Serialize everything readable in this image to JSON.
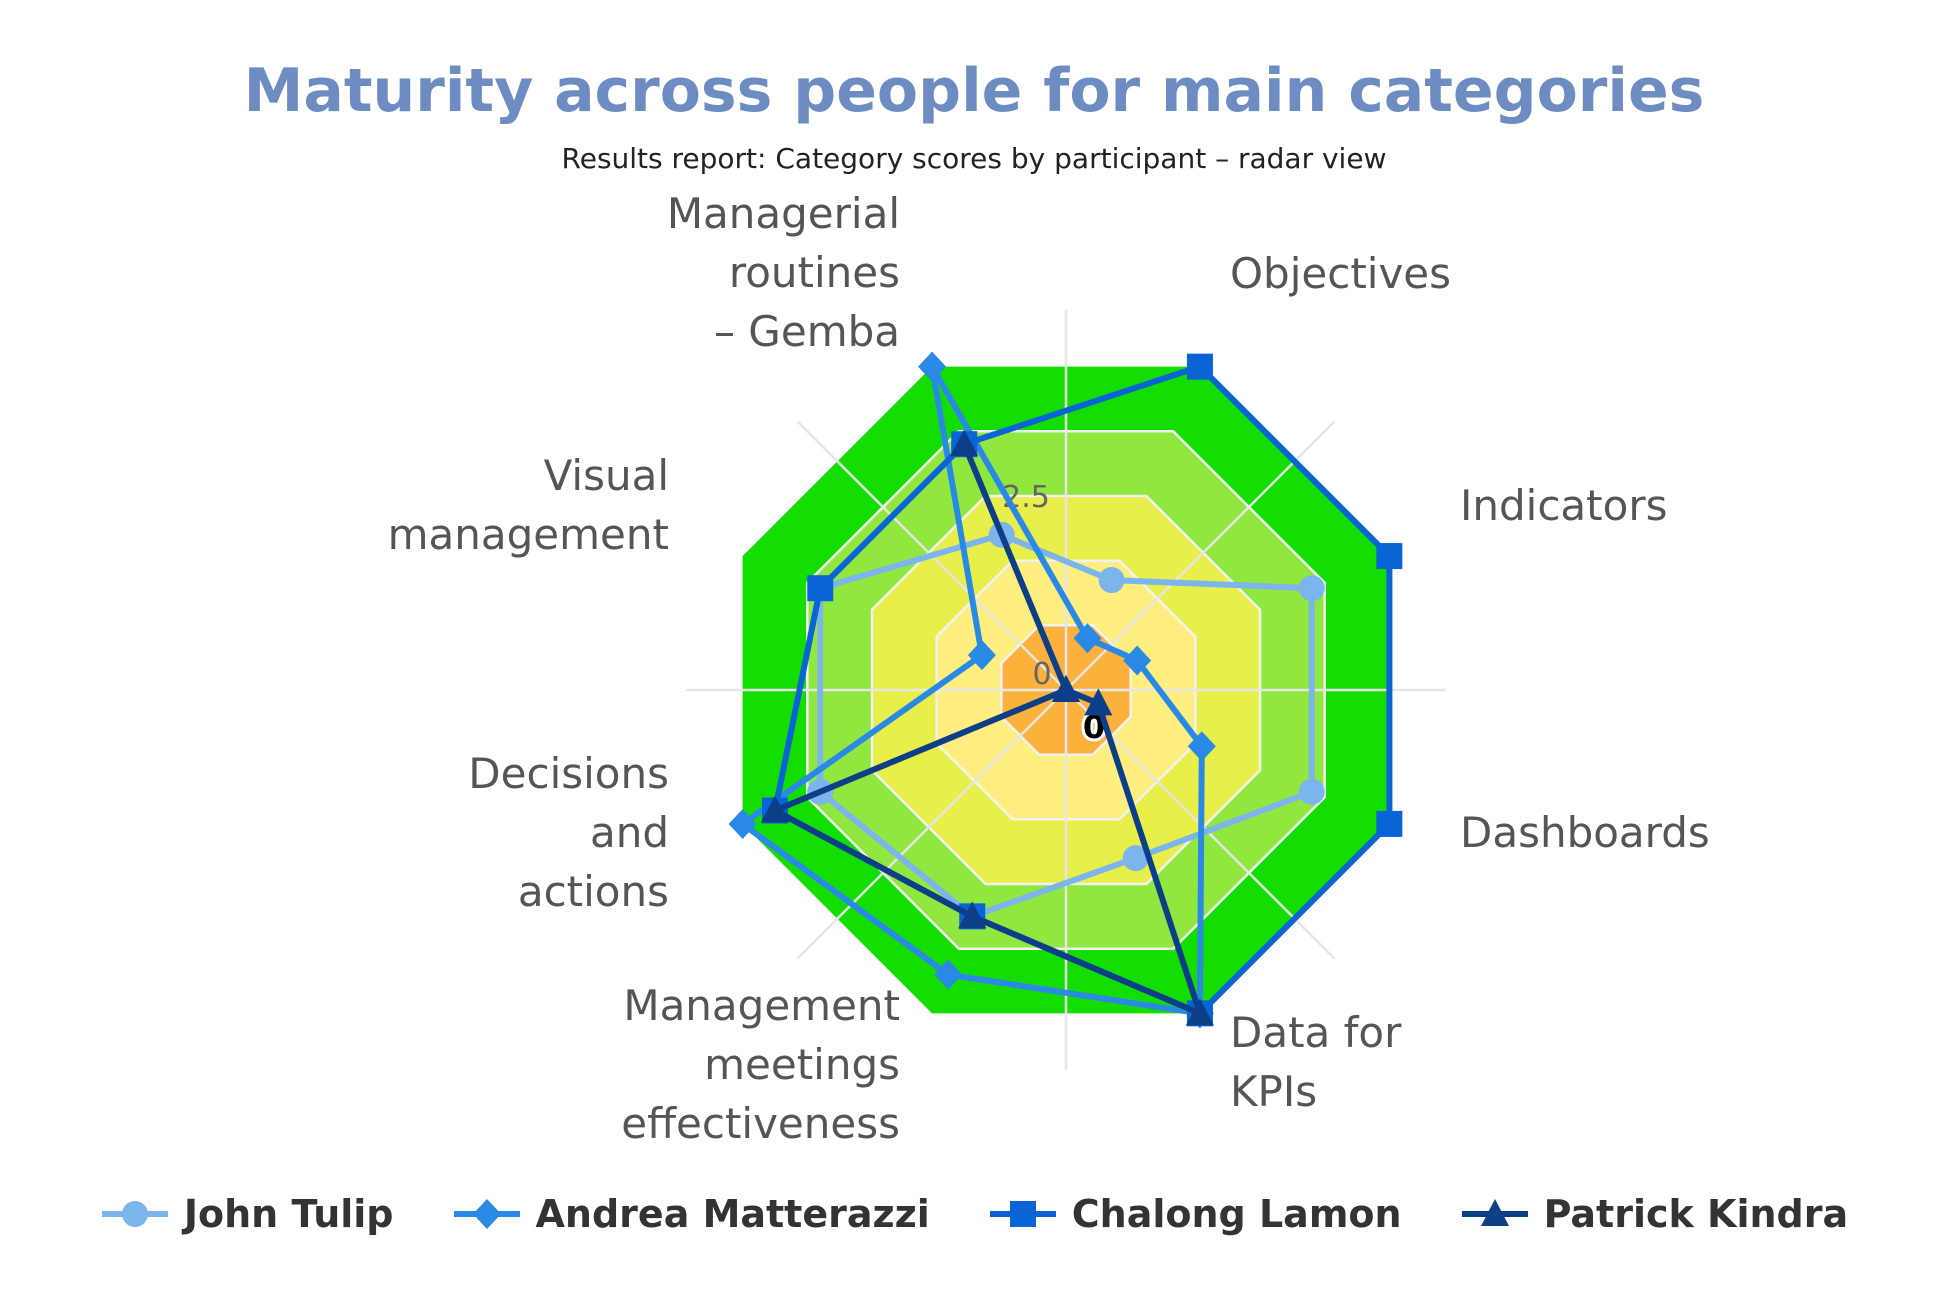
{
  "chart_data": {
    "type": "radar",
    "title": "Maturity across people for main categories",
    "subtitle": "Results report: Category scores by participant – radar view",
    "categories": [
      "Objectives",
      "Indicators",
      "Dashboards",
      "Data for KPIs",
      "Management meetings effectiveness",
      "Decisions and actions",
      "Visual management",
      "Managerial routines – Gemba"
    ],
    "category_lines": [
      [
        "Objectives"
      ],
      [
        "Indicators"
      ],
      [
        "Dashboards"
      ],
      [
        "Data for",
        "KPIs"
      ],
      [
        "Management",
        "meetings",
        "effectiveness"
      ],
      [
        "Decisions",
        "and",
        "actions"
      ],
      [
        "Visual",
        "management"
      ],
      [
        "Managerial",
        "routines",
        "– Gemba"
      ]
    ],
    "ylim": [
      0,
      5
    ],
    "ring_labels": [
      "0",
      "2.5"
    ],
    "center_label": "0",
    "bands": [
      {
        "from": 0,
        "to": 1,
        "color": "#fbb13c"
      },
      {
        "from": 1,
        "to": 2,
        "color": "#fdee7f"
      },
      {
        "from": 2,
        "to": 3,
        "color": "#e8ee4a"
      },
      {
        "from": 3,
        "to": 4,
        "color": "#8fe73f"
      },
      {
        "from": 4,
        "to": 5,
        "color": "#14dd00"
      }
    ],
    "series": [
      {
        "name": "John Tulip",
        "color": "#7cb5ec",
        "marker": "circle",
        "values": [
          1.7,
          3.8,
          3.8,
          2.6,
          3.5,
          3.8,
          3.8,
          2.4
        ]
      },
      {
        "name": "Andrea Matterazzi",
        "color": "#2b89e6",
        "marker": "diamond",
        "values": [
          0.8,
          1.1,
          2.1,
          5.0,
          4.4,
          5.0,
          1.3,
          5.0
        ]
      },
      {
        "name": "Chalong Lamon",
        "color": "#0a64d6",
        "marker": "square",
        "values": [
          5.0,
          5.0,
          5.0,
          5.0,
          3.5,
          4.5,
          3.8,
          3.8
        ]
      },
      {
        "name": "Patrick Kindra",
        "color": "#0c3f87",
        "marker": "triangle",
        "values": [
          0.0,
          0.0,
          0.5,
          5.0,
          3.5,
          4.5,
          0.0,
          3.8
        ]
      }
    ],
    "legend_position": "bottom",
    "grid": true
  }
}
